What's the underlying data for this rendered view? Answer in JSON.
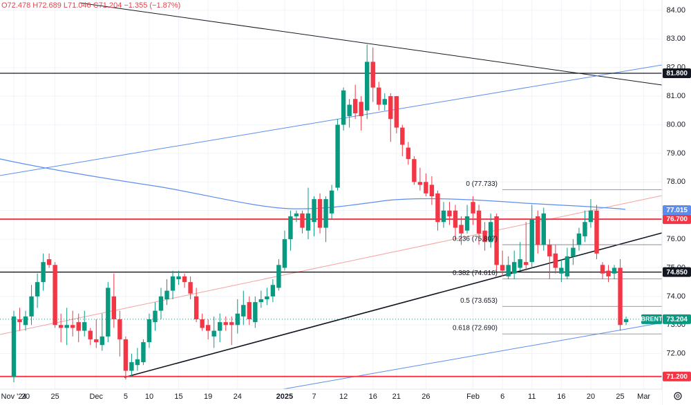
{
  "chart_data": {
    "type": "candlestick",
    "header": "O72.478 H72.689 L71.046 C71.204 −1.355 (−1.87%)",
    "symbol": "BRENT",
    "last_price": {
      "value": 73.204,
      "label": "73.204"
    },
    "up_color": "#089981",
    "down_color": "#f23645",
    "categories": [
      "Nov '24",
      null,
      "20",
      null,
      null,
      null,
      null,
      "25",
      null,
      null,
      null,
      null,
      null,
      null,
      "Dec",
      null,
      null,
      null,
      null,
      "5",
      null,
      null,
      null,
      "10",
      null,
      null,
      null,
      null,
      "15",
      null,
      null,
      null,
      null,
      "19",
      null,
      null,
      null,
      null,
      "24",
      null,
      null,
      null,
      null,
      null,
      null,
      null,
      "2025",
      null,
      null,
      null,
      null,
      "7",
      null,
      null,
      null,
      null,
      "12",
      null,
      null,
      null,
      null,
      "16",
      null,
      null,
      null,
      "21",
      null,
      null,
      null,
      null,
      "26",
      null,
      null,
      null,
      null,
      null,
      null,
      null,
      "Feb",
      null,
      null,
      null,
      null,
      "6",
      null,
      null,
      null,
      null,
      "11",
      null,
      null,
      null,
      null,
      "16",
      null,
      null,
      null,
      null,
      "20",
      null,
      null,
      null,
      null,
      "25",
      null,
      null,
      null,
      "Mar"
    ],
    "open": [
      71.2,
      73.2,
      73.0,
      73.3,
      74.0,
      74.5,
      75.3,
      75.1,
      73.0,
      72.9,
      73.0,
      73.1,
      72.8,
      72.8,
      72.5,
      72.3,
      72.6,
      74.0,
      73.2,
      72.5,
      71.4,
      71.6,
      71.7,
      72.4,
      73.1,
      73.5,
      73.9,
      74.2,
      74.6,
      74.7,
      74.5,
      74.0,
      73.2,
      73.0,
      72.6,
      72.8,
      73.1,
      73.1,
      73.0,
      73.3,
      73.8,
      73.1,
      73.8,
      73.9,
      74.0,
      74.3,
      75.0,
      76.0,
      76.8,
      76.9,
      76.3,
      76.6,
      77.4,
      76.4,
      76.9,
      77.8,
      80.0,
      80.3,
      80.9,
      80.8,
      80.5,
      82.2,
      81.3,
      80.7,
      81.0,
      81.0,
      79.9,
      79.2,
      78.8,
      78.0,
      78.0,
      77.9,
      77.6,
      76.6,
      77.0,
      77.0,
      76.5,
      76.3,
      77.3,
      77.0,
      76.3,
      75.9,
      76.8,
      75.1,
      74.7,
      74.8,
      75.0,
      75.2,
      75.2,
      76.8,
      75.8,
      75.8,
      75.5,
      74.8,
      74.7,
      75.4,
      75.8,
      76.1,
      76.6,
      77.0,
      75.1,
      74.9,
      74.8,
      75.0,
      73.1,
      null,
      null,
      null
    ],
    "high": [
      73.5,
      73.6,
      73.5,
      74.4,
      74.8,
      75.5,
      75.5,
      75.2,
      73.4,
      73.6,
      73.5,
      73.4,
      73.5,
      72.9,
      73.2,
      73.4,
      74.5,
      74.8,
      73.5,
      72.6,
      72.0,
      72.2,
      72.5,
      73.4,
      73.8,
      74.3,
      74.6,
      74.9,
      74.9,
      74.8,
      74.7,
      74.3,
      73.4,
      73.2,
      73.3,
      73.4,
      73.3,
      73.3,
      73.9,
      74.2,
      74.0,
      74.0,
      74.2,
      74.3,
      74.6,
      75.3,
      76.3,
      77.0,
      77.0,
      77.0,
      77.8,
      77.5,
      77.6,
      77.5,
      77.9,
      80.2,
      81.3,
      80.9,
      81.4,
      81.0,
      82.8,
      82.7,
      81.5,
      81.1,
      81.1,
      81.0,
      80.0,
      79.4,
      78.9,
      78.5,
      78.3,
      78.2,
      77.7,
      77.3,
      77.3,
      77.2,
      76.8,
      77.2,
      77.5,
      77.2,
      76.6,
      76.9,
      76.9,
      75.6,
      75.4,
      75.6,
      75.9,
      76.6,
      77.2,
      77.0,
      77.1,
      76.0,
      75.8,
      75.3,
      75.7,
      76.0,
      76.4,
      77.0,
      77.4,
      77.2,
      75.2,
      75.1,
      75.1,
      75.3,
      73.3,
      null,
      null,
      null
    ],
    "low": [
      71.0,
      72.8,
      72.8,
      73.0,
      73.6,
      74.2,
      75.0,
      72.9,
      72.4,
      72.3,
      72.6,
      72.4,
      72.6,
      72.3,
      72.2,
      72.1,
      72.4,
      72.9,
      71.9,
      71.1,
      71.2,
      71.4,
      71.6,
      72.2,
      72.8,
      73.2,
      73.7,
      73.9,
      74.4,
      74.3,
      73.9,
      73.1,
      72.8,
      72.5,
      72.2,
      72.4,
      72.8,
      72.3,
      72.7,
      73.0,
      73.0,
      72.9,
      73.6,
      73.7,
      73.8,
      74.2,
      74.9,
      75.6,
      76.6,
      76.2,
      76.0,
      76.1,
      76.2,
      75.9,
      76.7,
      77.7,
      79.8,
      79.9,
      80.2,
      79.8,
      80.2,
      80.8,
      80.5,
      80.5,
      79.4,
      79.7,
      78.9,
      78.6,
      77.9,
      77.7,
      77.5,
      77.2,
      76.3,
      76.4,
      76.5,
      76.0,
      75.8,
      76.2,
      76.5,
      75.8,
      75.6,
      75.7,
      74.9,
      74.7,
      74.6,
      74.6,
      74.9,
      74.9,
      75.0,
      75.5,
      75.6,
      74.6,
      74.8,
      74.5,
      74.6,
      75.1,
      75.6,
      75.9,
      76.4,
      75.3,
      74.6,
      74.5,
      74.6,
      72.8,
      73.0,
      null,
      null,
      null
    ],
    "close": [
      73.3,
      73.1,
      73.3,
      74.0,
      74.5,
      75.2,
      75.1,
      73.0,
      72.9,
      73.0,
      72.9,
      72.8,
      73.1,
      72.5,
      72.4,
      72.6,
      74.3,
      73.2,
      72.5,
      71.4,
      71.7,
      71.8,
      72.4,
      73.2,
      73.5,
      74.0,
      74.2,
      74.7,
      74.7,
      74.5,
      74.1,
      73.2,
      72.9,
      72.8,
      72.8,
      73.1,
      73.0,
      73.0,
      73.4,
      73.7,
      73.2,
      73.8,
      73.9,
      74.0,
      74.4,
      75.1,
      76.0,
      76.8,
      76.9,
      76.4,
      76.9,
      77.4,
      76.4,
      77.4,
      77.7,
      80.0,
      81.2,
      80.7,
      80.4,
      80.3,
      82.2,
      81.3,
      80.7,
      80.9,
      80.2,
      79.9,
      79.3,
      78.8,
      78.0,
      77.9,
      77.6,
      77.5,
      76.6,
      77.0,
      76.8,
      76.4,
      76.2,
      76.8,
      76.9,
      76.2,
      75.9,
      76.6,
      75.1,
      74.9,
      75.1,
      75.2,
      75.3,
      75.1,
      76.7,
      75.8,
      76.9,
      75.4,
      75.0,
      75.0,
      75.4,
      75.7,
      76.2,
      76.6,
      77.0,
      75.5,
      74.8,
      74.7,
      75.0,
      73.0,
      73.2,
      null,
      null,
      null
    ],
    "ylim": [
      70.76,
      84.36
    ],
    "yticks": [
      {
        "value": 72,
        "label": "72.00"
      },
      {
        "value": 73,
        "label": "73.00"
      },
      {
        "value": 74,
        "label": "74.00"
      },
      {
        "value": 75,
        "label": "75.00"
      },
      {
        "value": 76,
        "label": "76.00"
      },
      {
        "value": 77,
        "label": "77.00"
      },
      {
        "value": 78,
        "label": "78.00"
      },
      {
        "value": 79,
        "label": "79.00"
      },
      {
        "value": 80,
        "label": "80.00"
      },
      {
        "value": 81,
        "label": "81.00"
      },
      {
        "value": 82,
        "label": "82.00"
      },
      {
        "value": 83,
        "label": "83.00"
      },
      {
        "value": 84,
        "label": "84.00"
      }
    ],
    "grid": true,
    "price_lines": [
      {
        "value": 81.8,
        "label": "81.800",
        "color": "#131722"
      },
      {
        "value": 76.7,
        "label": "76.700",
        "color": "#f23645"
      },
      {
        "value": 74.85,
        "label": "74.850",
        "color": "#131722"
      },
      {
        "value": 71.2,
        "label": "71.200",
        "color": "#f23645"
      }
    ],
    "ma_label": {
      "value": 77.015,
      "label": "77.015",
      "color": "#5b8def"
    },
    "fib_levels": [
      {
        "value": 77.733,
        "label": "0 (77.733)"
      },
      {
        "value": 75.807,
        "label": "0.236 (75.807)"
      },
      {
        "value": 74.616,
        "label": "0.382 (74.616)"
      },
      {
        "value": 73.653,
        "label": "0.5 (73.653)"
      },
      {
        "value": 72.69,
        "label": "0.618 (72.690)"
      }
    ]
  }
}
